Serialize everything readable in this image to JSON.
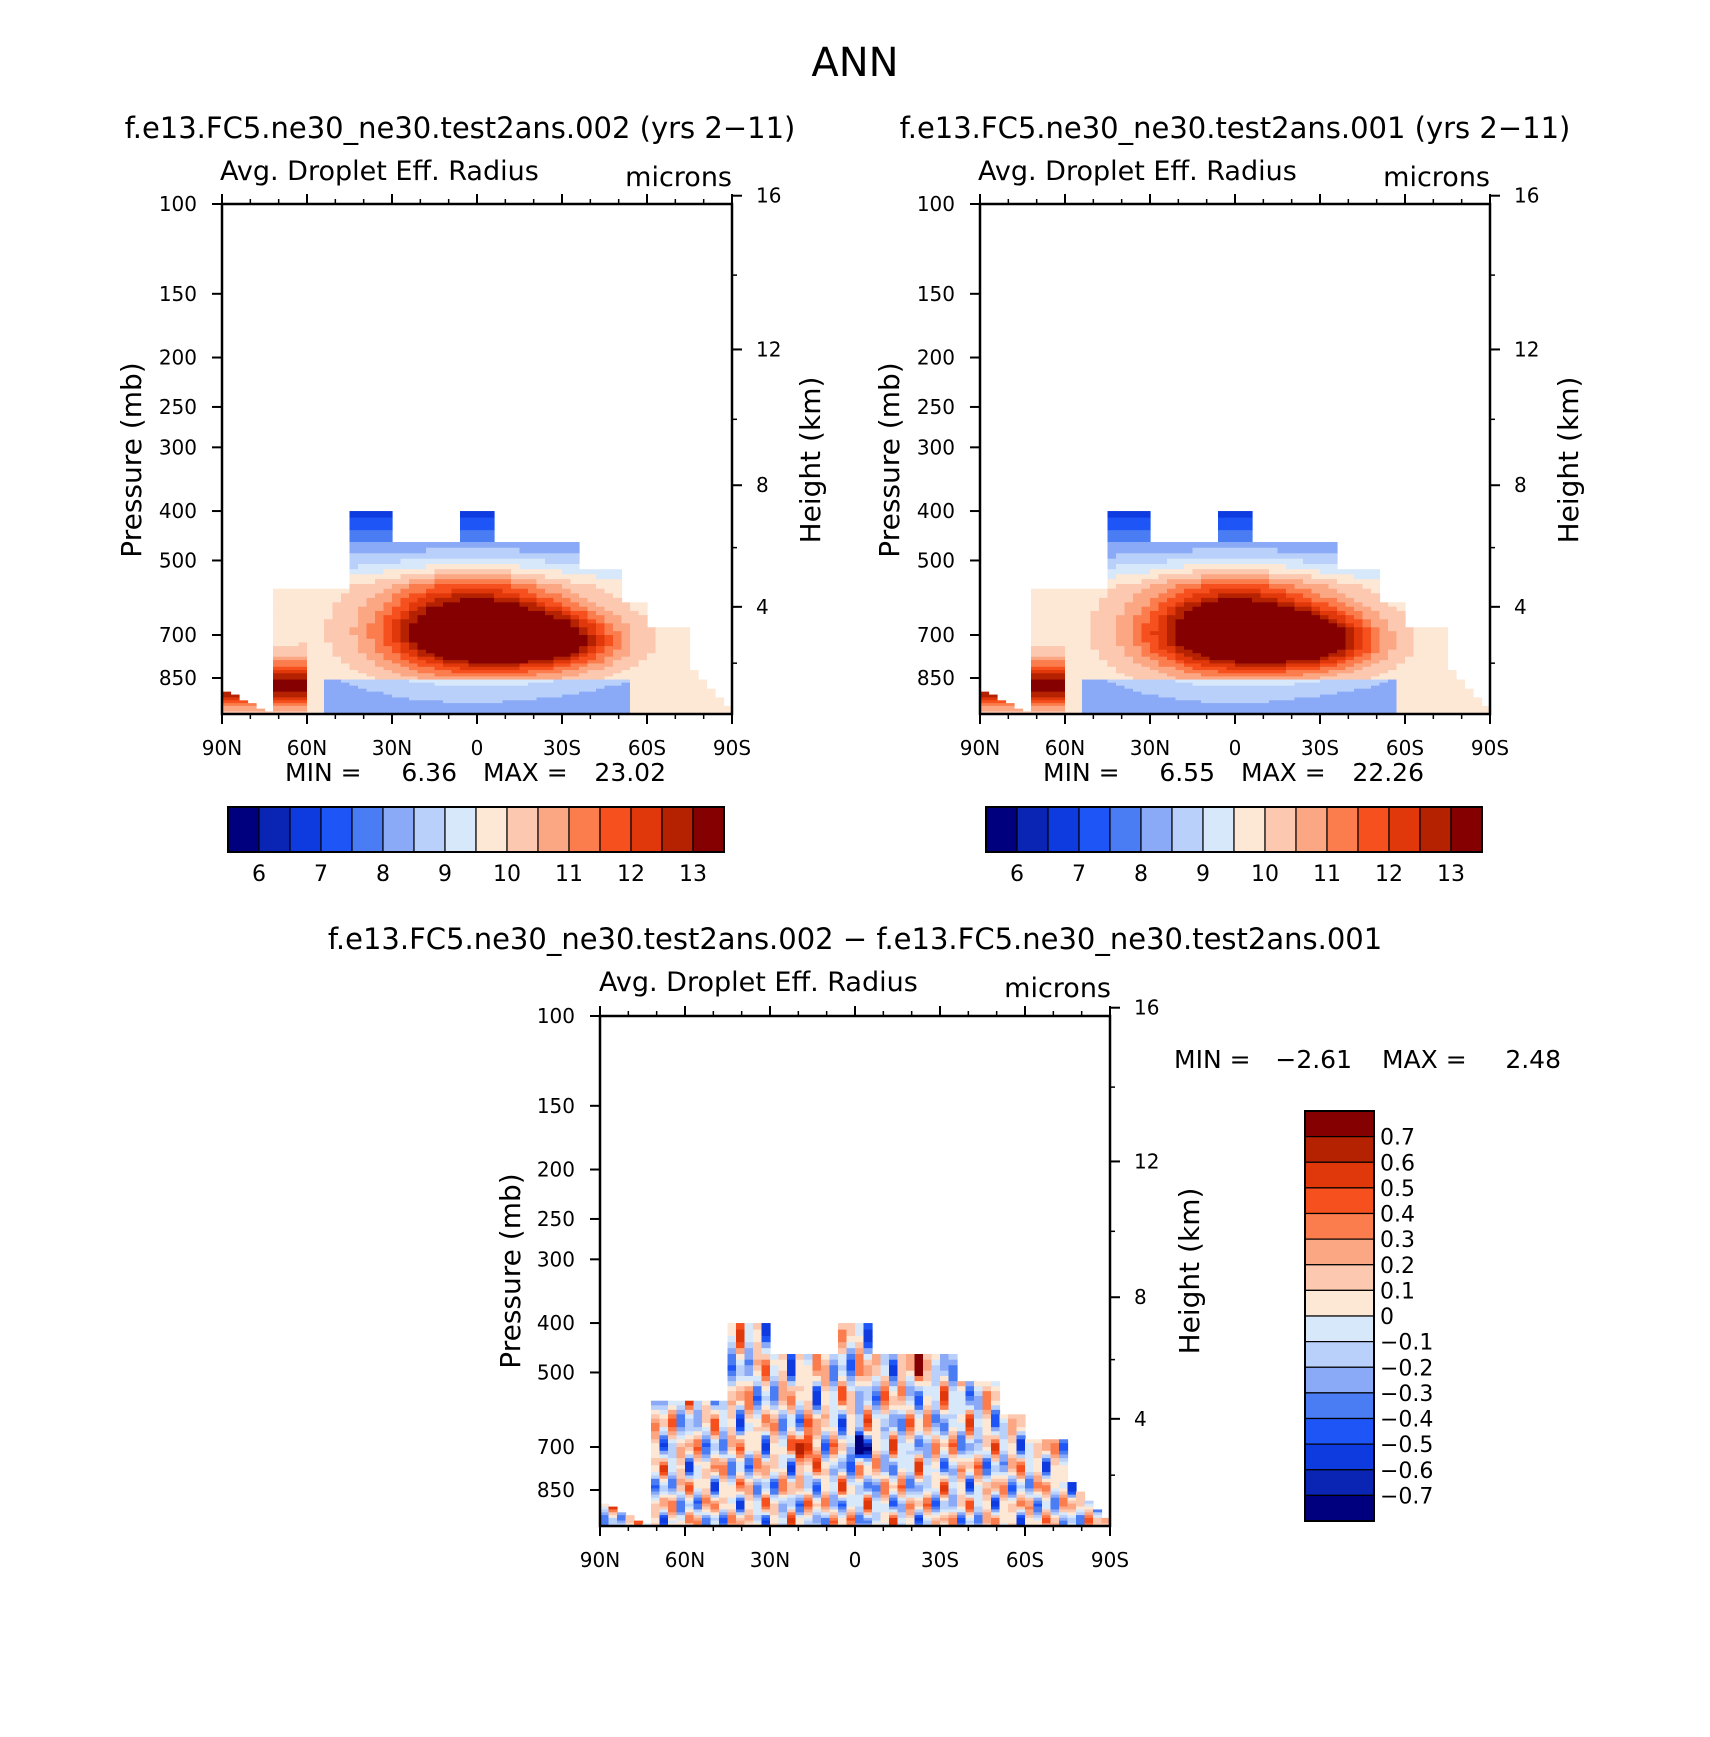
{
  "main_title": "ANN",
  "chart_data": [
    {
      "id": "top-left",
      "type": "heatmap",
      "case_title": "f.e13.FC5.ne30_ne30.test2ans.002 (yrs 2-11)",
      "variable": "Avg. Droplet Eff. Radius",
      "units": "microns",
      "ylabel": "Pressure (mb)",
      "ylabel_right": "Height (km)",
      "x_ticks": [
        "90N",
        "60N",
        "30N",
        "0",
        "30S",
        "60S",
        "90S"
      ],
      "x_range": [
        90,
        -90
      ],
      "p_ticks": [
        100,
        150,
        200,
        250,
        300,
        400,
        500,
        700,
        850
      ],
      "p_range": [
        100,
        1000
      ],
      "z_ticks": [
        16,
        12,
        8,
        4
      ],
      "min_label": "MIN =",
      "min_value": "6.36",
      "max_label": "MAX =",
      "max_value": "23.02",
      "colorbar": {
        "labels": [
          "6",
          "7",
          "8",
          "9",
          "10",
          "11",
          "12",
          "13"
        ],
        "colors": [
          "#00007f",
          "#0a25b3",
          "#0e3be0",
          "#1d55f7",
          "#4a7cf4",
          "#8aaaf7",
          "#b9d0fb",
          "#d8e8fb",
          "#fde7d5",
          "#fcc8b0",
          "#fca784",
          "#fb7d4e",
          "#f6501f",
          "#e0380a",
          "#b52202",
          "#850000"
        ]
      },
      "center_value": 16.5
    },
    {
      "id": "top-right",
      "type": "heatmap",
      "case_title": "f.e13.FC5.ne30_ne30.test2ans.001 (yrs 2-11)",
      "variable": "Avg. Droplet Eff. Radius",
      "units": "microns",
      "ylabel": "Pressure (mb)",
      "ylabel_right": "Height (km)",
      "x_ticks": [
        "90N",
        "60N",
        "30N",
        "0",
        "30S",
        "60S",
        "90S"
      ],
      "x_range": [
        90,
        -90
      ],
      "p_ticks": [
        100,
        150,
        200,
        250,
        300,
        400,
        500,
        700,
        850
      ],
      "p_range": [
        100,
        1000
      ],
      "z_ticks": [
        16,
        12,
        8,
        4
      ],
      "min_label": "MIN =",
      "min_value": "6.55",
      "max_label": "MAX =",
      "max_value": "22.26",
      "colorbar": {
        "labels": [
          "6",
          "7",
          "8",
          "9",
          "10",
          "11",
          "12",
          "13"
        ],
        "colors": [
          "#00007f",
          "#0a25b3",
          "#0e3be0",
          "#1d55f7",
          "#4a7cf4",
          "#8aaaf7",
          "#b9d0fb",
          "#d8e8fb",
          "#fde7d5",
          "#fcc8b0",
          "#fca784",
          "#fb7d4e",
          "#f6501f",
          "#e0380a",
          "#b52202",
          "#850000"
        ]
      },
      "center_value": 16.5
    },
    {
      "id": "bottom-diff",
      "type": "heatmap",
      "case_title": "f.e13.FC5.ne30_ne30.test2ans.002 - f.e13.FC5.ne30_ne30.test2ans.001",
      "variable": "Avg. Droplet Eff. Radius",
      "units": "microns",
      "ylabel": "Pressure (mb)",
      "ylabel_right": "Height (km)",
      "x_ticks": [
        "90N",
        "60N",
        "30N",
        "0",
        "30S",
        "60S",
        "90S"
      ],
      "x_range": [
        90,
        -90
      ],
      "p_ticks": [
        100,
        150,
        200,
        250,
        300,
        400,
        500,
        700,
        850
      ],
      "p_range": [
        100,
        1000
      ],
      "z_ticks": [
        16,
        12,
        8,
        4
      ],
      "min_label": "MIN =",
      "min_value": "-2.61",
      "max_label": "MAX =",
      "max_value": "2.48",
      "colorbar": {
        "labels": [
          "0.7",
          "0.6",
          "0.5",
          "0.4",
          "0.3",
          "0.2",
          "0.1",
          "0",
          "-0.1",
          "-0.2",
          "-0.3",
          "-0.4",
          "-0.5",
          "-0.6",
          "-0.7"
        ],
        "colors": [
          "#850000",
          "#b52202",
          "#e0380a",
          "#f6501f",
          "#fb7d4e",
          "#fca784",
          "#fcc8b0",
          "#fde7d5",
          "#d8e8fb",
          "#b9d0fb",
          "#8aaaf7",
          "#4a7cf4",
          "#1d55f7",
          "#0e3be0",
          "#0a25b3",
          "#00007f"
        ]
      }
    }
  ]
}
